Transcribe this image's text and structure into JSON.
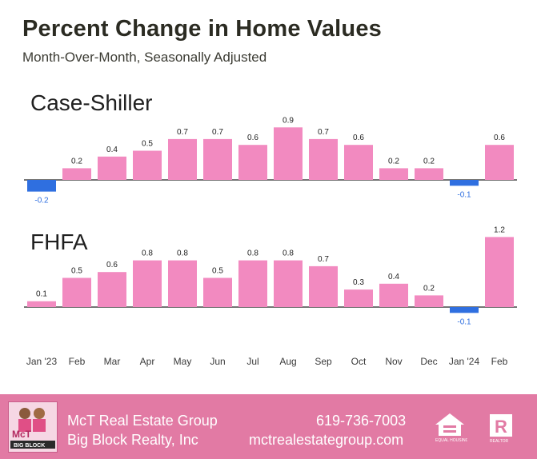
{
  "title": "Percent Change in Home Values",
  "subtitle": "Month-Over-Month, Seasonally Adjusted",
  "colors": {
    "positive": "#f28ac0",
    "negative": "#2f6fe0",
    "footer": "#e27aa4",
    "title": "#2b2b22"
  },
  "chart_data": [
    {
      "type": "bar",
      "title": "Case-Shiller",
      "categories": [
        "Jan '23",
        "Feb",
        "Mar",
        "Apr",
        "May",
        "Jun",
        "Jul",
        "Aug",
        "Sep",
        "Oct",
        "Nov",
        "Dec",
        "Jan '24",
        "Feb"
      ],
      "values": [
        -0.2,
        0.2,
        0.4,
        0.5,
        0.7,
        0.7,
        0.6,
        0.9,
        0.7,
        0.6,
        0.2,
        0.2,
        -0.1,
        0.6
      ],
      "labels": [
        "-0.2",
        "0.2",
        "0.4",
        "0.5",
        "0.7",
        "0.7",
        "0.6",
        "0.9",
        "0.7",
        "0.6",
        "0.2",
        "0.2",
        "-0.1",
        "0.6"
      ],
      "xlabel": "",
      "ylabel": "",
      "grid": false
    },
    {
      "type": "bar",
      "title": "FHFA",
      "categories": [
        "Jan '23",
        "Feb",
        "Mar",
        "Apr",
        "May",
        "Jun",
        "Jul",
        "Aug",
        "Sep",
        "Oct",
        "Nov",
        "Dec",
        "Jan '24",
        "Feb"
      ],
      "values": [
        0.1,
        0.5,
        0.6,
        0.8,
        0.8,
        0.5,
        0.8,
        0.8,
        0.7,
        0.3,
        0.4,
        0.2,
        -0.1,
        1.2
      ],
      "labels": [
        "0.1",
        "0.5",
        "0.6",
        "0.8",
        "0.8",
        "0.5",
        "0.8",
        "0.8",
        "0.7",
        "0.3",
        "0.4",
        "0.2",
        "-0.1",
        "1.2"
      ],
      "xlabel": "",
      "ylabel": "",
      "grid": false
    }
  ],
  "x_tick_labels": [
    "Jan '23",
    "Feb",
    "Mar",
    "Apr",
    "May",
    "Jun",
    "Jul",
    "Aug",
    "Sep",
    "Oct",
    "Nov",
    "Dec",
    "Jan '24",
    "Feb"
  ],
  "footer": {
    "company": "McT Real Estate Group",
    "brokerage": "Big Block Realty, Inc",
    "phone": "619-736-7003",
    "website": "mctrealestategroup.com",
    "logo_icon": "mct-big-block-logo",
    "equal_housing_icon": "equal-housing-opportunity-icon",
    "realtor_icon": "realtor-icon"
  }
}
